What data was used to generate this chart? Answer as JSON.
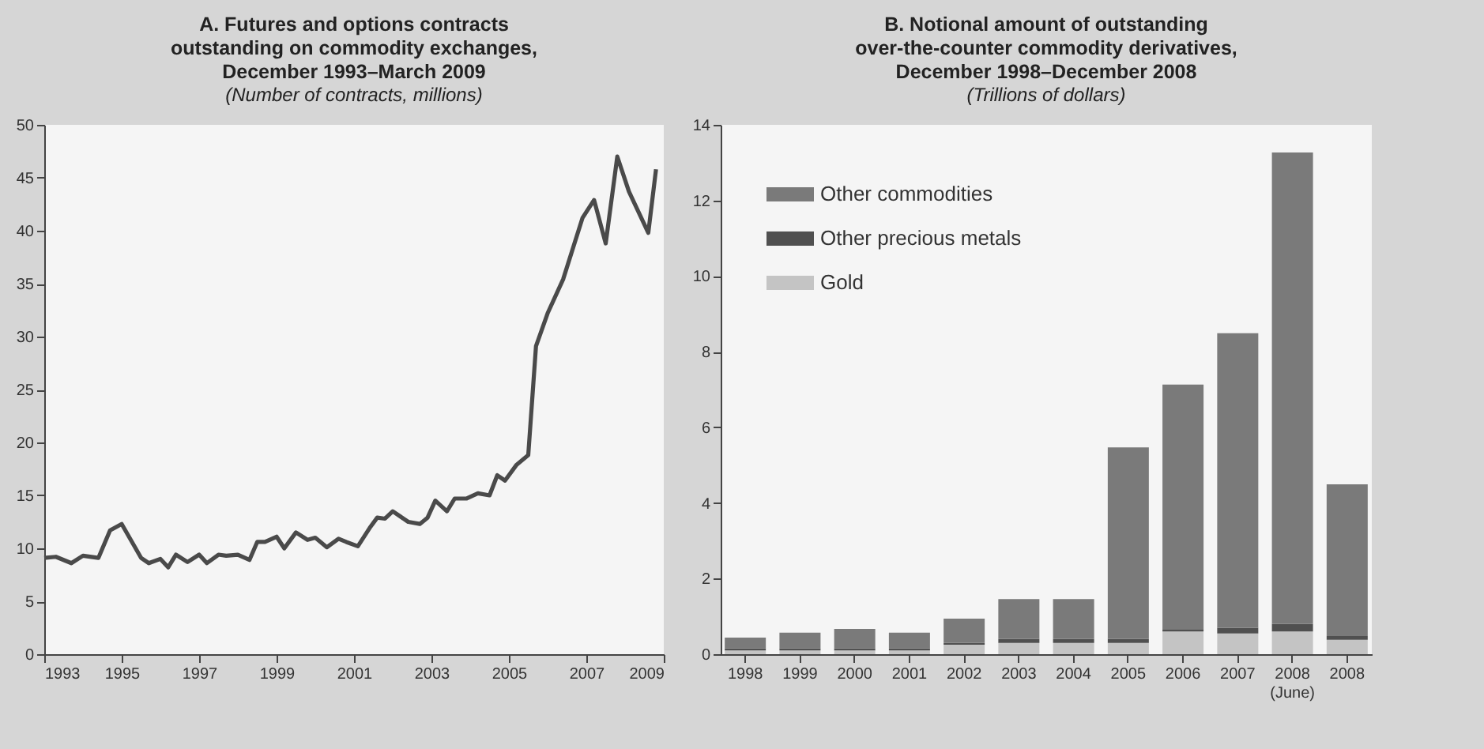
{
  "chart_data": [
    {
      "type": "line",
      "title": "A. Futures and options contracts\noutstanding on commodity  exchanges,\nDecember 1993–March 2009",
      "subtitle": "(Number of contracts, millions)",
      "x": [
        1993.0,
        1993.3,
        1993.7,
        1994.0,
        1994.4,
        1994.7,
        1995.0,
        1995.5,
        1995.7,
        1996.0,
        1996.2,
        1996.4,
        1996.7,
        1997.0,
        1997.2,
        1997.5,
        1997.7,
        1998.0,
        1998.3,
        1998.5,
        1998.7,
        1999.0,
        1999.2,
        1999.5,
        1999.8,
        2000.0,
        2000.3,
        2000.6,
        2000.8,
        2001.1,
        2001.4,
        2001.6,
        2001.8,
        2002.0,
        2002.4,
        2002.7,
        2002.9,
        2003.1,
        2003.4,
        2003.6,
        2003.9,
        2004.2,
        2004.5,
        2004.7,
        2004.9,
        2005.2,
        2005.5,
        2005.7,
        2006.0,
        2006.4,
        2006.9,
        2007.2,
        2007.5,
        2007.8,
        2008.1,
        2008.6,
        2008.8
      ],
      "series": [
        {
          "color": "#4a4a4a",
          "values": [
            9.1,
            9.2,
            8.6,
            9.3,
            9.1,
            11.7,
            12.3,
            9.1,
            8.6,
            9.0,
            8.2,
            9.4,
            8.7,
            9.4,
            8.6,
            9.4,
            9.3,
            9.4,
            8.9,
            10.6,
            10.6,
            11.1,
            10.0,
            11.5,
            10.8,
            11.0,
            10.1,
            10.9,
            10.6,
            10.2,
            11.9,
            12.9,
            12.8,
            13.5,
            12.5,
            12.3,
            12.9,
            14.5,
            13.5,
            14.7,
            14.7,
            15.2,
            15.0,
            16.9,
            16.4,
            17.9,
            18.8,
            29.1,
            32.2,
            35.4,
            41.2,
            42.9,
            38.8,
            47.0,
            43.7,
            39.8,
            45.8
          ]
        }
      ],
      "xlim": [
        1993,
        2009
      ],
      "xticks": [
        1993,
        1995,
        1997,
        1999,
        2001,
        2003,
        2005,
        2007,
        2009
      ],
      "ylim": [
        0,
        50
      ],
      "yticks": [
        0,
        5,
        10,
        15,
        20,
        25,
        30,
        35,
        40,
        45,
        50
      ],
      "grid": false
    },
    {
      "type": "bar",
      "title": "B. Notional amount of outstanding\nover-the-counter commodity derivatives,\nDecember 1998–December 2008",
      "subtitle": "(Trillions of dollars)",
      "categories": [
        "1998",
        "1999",
        "2000",
        "2001",
        "2002",
        "2003",
        "2004",
        "2005",
        "2006",
        "2007",
        "2008\n(June)",
        "2008"
      ],
      "stacked": true,
      "series": [
        {
          "name": "Gold",
          "color": "#c4c4c4",
          "values": [
            0.1,
            0.1,
            0.1,
            0.1,
            0.25,
            0.3,
            0.3,
            0.3,
            0.6,
            0.55,
            0.6,
            0.38
          ]
        },
        {
          "name": "Other precious metals",
          "color": "#505050",
          "values": [
            0.05,
            0.05,
            0.05,
            0.05,
            0.05,
            0.1,
            0.1,
            0.1,
            0.05,
            0.15,
            0.2,
            0.1
          ]
        },
        {
          "name": "Other commodities",
          "color": "#7a7a7a",
          "values": [
            0.29,
            0.42,
            0.52,
            0.42,
            0.64,
            1.06,
            1.06,
            5.07,
            6.48,
            7.79,
            12.47,
            4.01
          ]
        }
      ],
      "ylim": [
        0,
        14
      ],
      "yticks": [
        0,
        2,
        4,
        6,
        8,
        10,
        12,
        14
      ],
      "grid": false,
      "legend": "top left"
    }
  ]
}
